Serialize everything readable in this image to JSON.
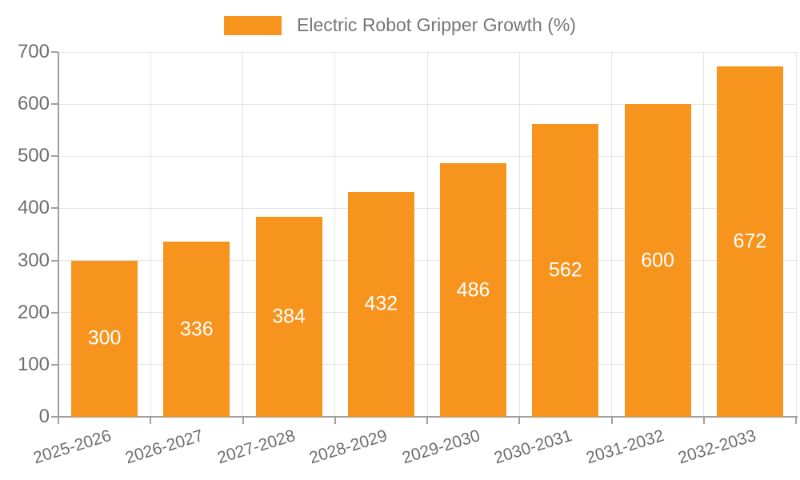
{
  "legend": {
    "label": "Electric Robot Gripper Growth (%)"
  },
  "chart_data": {
    "type": "bar",
    "title": "",
    "categories": [
      "2025-2026",
      "2026-2027",
      "2027-2028",
      "2028-2029",
      "2029-2030",
      "2030-2031",
      "2031-2032",
      "2032-2033"
    ],
    "series": [
      {
        "name": "Electric Robot Gripper Growth (%)",
        "values": [
          300,
          336,
          384,
          432,
          486,
          562,
          600,
          672
        ]
      }
    ],
    "xlabel": "",
    "ylabel": "",
    "ylim": [
      0,
      700
    ],
    "yticks": [
      0,
      100,
      200,
      300,
      400,
      500,
      600,
      700
    ],
    "grid": true,
    "gridlines": "horizontal at each 100 plus vertical at category boundaries",
    "legend_position": "top-center",
    "value_labels": "white numbers centered inside bars",
    "x_label_rotation_deg": -17
  },
  "colors": {
    "bar": "#F7941E",
    "axis_line": "#a0a0a0",
    "gridline": "#e3e3e3",
    "tick_text": "#6e6e6e",
    "legend_text": "#757575",
    "bar_value_text": "#ffffff",
    "background": "#ffffff"
  }
}
